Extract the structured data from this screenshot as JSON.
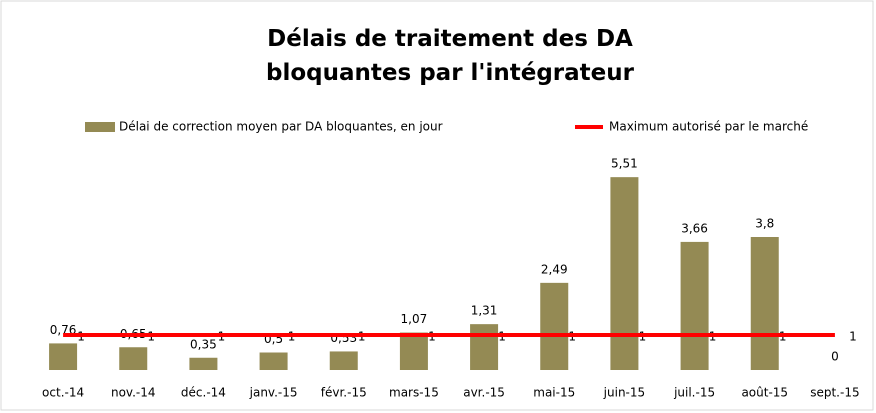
{
  "chart_data": {
    "type": "bar-line",
    "title": "Délais de traitement des DA bloquantes par l'intégrateur",
    "categories": [
      "oct.-14",
      "nov.-14",
      "déc.-14",
      "janv.-15",
      "févr.-15",
      "mars-15",
      "avr.-15",
      "mai-15",
      "juin-15",
      "juil.-15",
      "août-15",
      "sept.-15"
    ],
    "series": [
      {
        "name": "Délai de correction moyen par DA bloquantes, en jour",
        "type": "bar",
        "color": "#948a54",
        "values": [
          0.76,
          0.65,
          0.35,
          0.5,
          0.53,
          1.07,
          1.31,
          2.49,
          5.51,
          3.66,
          3.8,
          0
        ],
        "value_labels": [
          "0,76",
          "0,65",
          "0,35",
          "0,5",
          "0,53",
          "1,07",
          "1,31",
          "2,49",
          "5,51",
          "3,66",
          "3,8",
          "0"
        ]
      },
      {
        "name": "Maximum autorisé par le marché",
        "type": "line",
        "color": "#ff0000",
        "values": [
          1,
          1,
          1,
          1,
          1,
          1,
          1,
          1,
          1,
          1,
          1,
          1
        ]
      }
    ],
    "ylim": [
      0,
      6
    ],
    "legend": "top"
  }
}
